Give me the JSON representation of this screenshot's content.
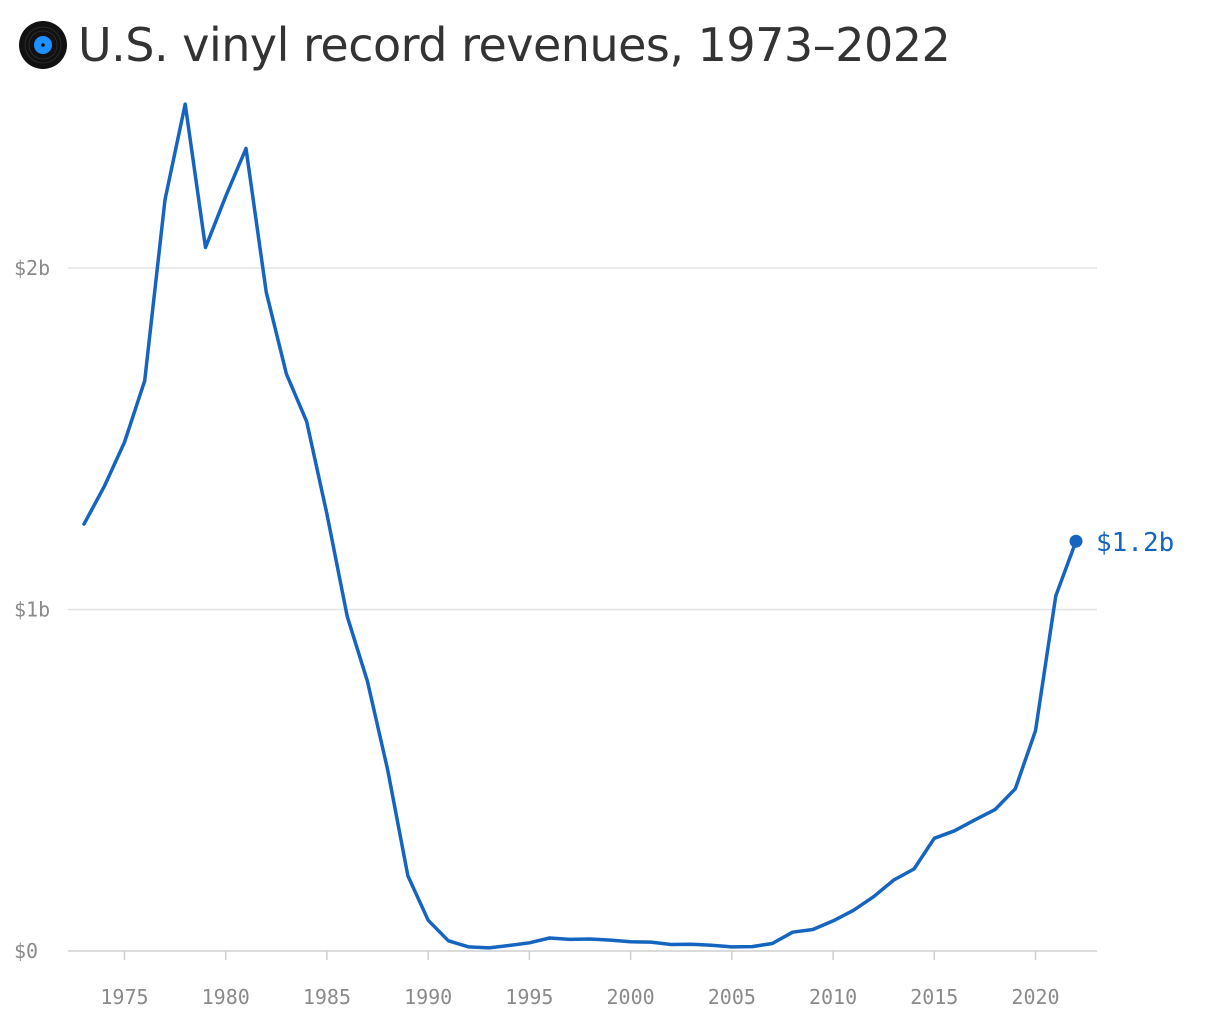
{
  "header": {
    "title": "U.S. vinyl record revenues, 1973–2022",
    "icon": "vinyl-record-icon"
  },
  "colors": {
    "line": "#1565c0",
    "grid": "#e3e3e3",
    "axis": "#cfcfcf",
    "tick_text": "#8a8a8a",
    "record_body": "#111111",
    "record_label": "#1e90ff"
  },
  "chart_data": {
    "type": "line",
    "title": "U.S. vinyl record revenues, 1973–2022",
    "xlabel": "",
    "ylabel": "",
    "xlim": [
      1973,
      2022
    ],
    "ylim": [
      0,
      2.5
    ],
    "grid": true,
    "x": [
      1973,
      1974,
      1975,
      1976,
      1977,
      1978,
      1979,
      1980,
      1981,
      1982,
      1983,
      1984,
      1985,
      1986,
      1987,
      1988,
      1989,
      1990,
      1991,
      1992,
      1993,
      1994,
      1995,
      1996,
      1997,
      1998,
      1999,
      2000,
      2001,
      2002,
      2003,
      2004,
      2005,
      2006,
      2007,
      2008,
      2009,
      2010,
      2011,
      2012,
      2013,
      2014,
      2015,
      2016,
      2017,
      2018,
      2019,
      2020,
      2021,
      2022
    ],
    "series": [
      {
        "values": [
          1.25,
          1.36,
          1.49,
          1.67,
          2.2,
          2.48,
          2.06,
          2.21,
          2.35,
          1.93,
          1.69,
          1.55,
          1.28,
          0.98,
          0.79,
          0.53,
          0.22,
          0.09,
          0.03,
          0.012,
          0.009,
          0.016,
          0.024,
          0.038,
          0.034,
          0.035,
          0.032,
          0.027,
          0.026,
          0.019,
          0.02,
          0.017,
          0.012,
          0.013,
          0.022,
          0.055,
          0.063,
          0.088,
          0.119,
          0.159,
          0.208,
          0.24,
          0.33,
          0.352,
          0.384,
          0.414,
          0.475,
          0.645,
          1.04,
          1.2
        ]
      }
    ],
    "y_ticks": [
      {
        "value": 0,
        "label": "$0"
      },
      {
        "value": 1,
        "label": "$1b"
      },
      {
        "value": 2,
        "label": "$2b"
      }
    ],
    "x_ticks": [
      {
        "value": 1975,
        "label": "1975"
      },
      {
        "value": 1980,
        "label": "1980"
      },
      {
        "value": 1985,
        "label": "1985"
      },
      {
        "value": 1990,
        "label": "1990"
      },
      {
        "value": 1995,
        "label": "1995"
      },
      {
        "value": 2000,
        "label": "2000"
      },
      {
        "value": 2005,
        "label": "2005"
      },
      {
        "value": 2010,
        "label": "2010"
      },
      {
        "value": 2015,
        "label": "2015"
      },
      {
        "value": 2020,
        "label": "2020"
      }
    ],
    "annotations": [
      {
        "x": 2022,
        "y": 1.2,
        "text": "$1.2b"
      }
    ]
  }
}
